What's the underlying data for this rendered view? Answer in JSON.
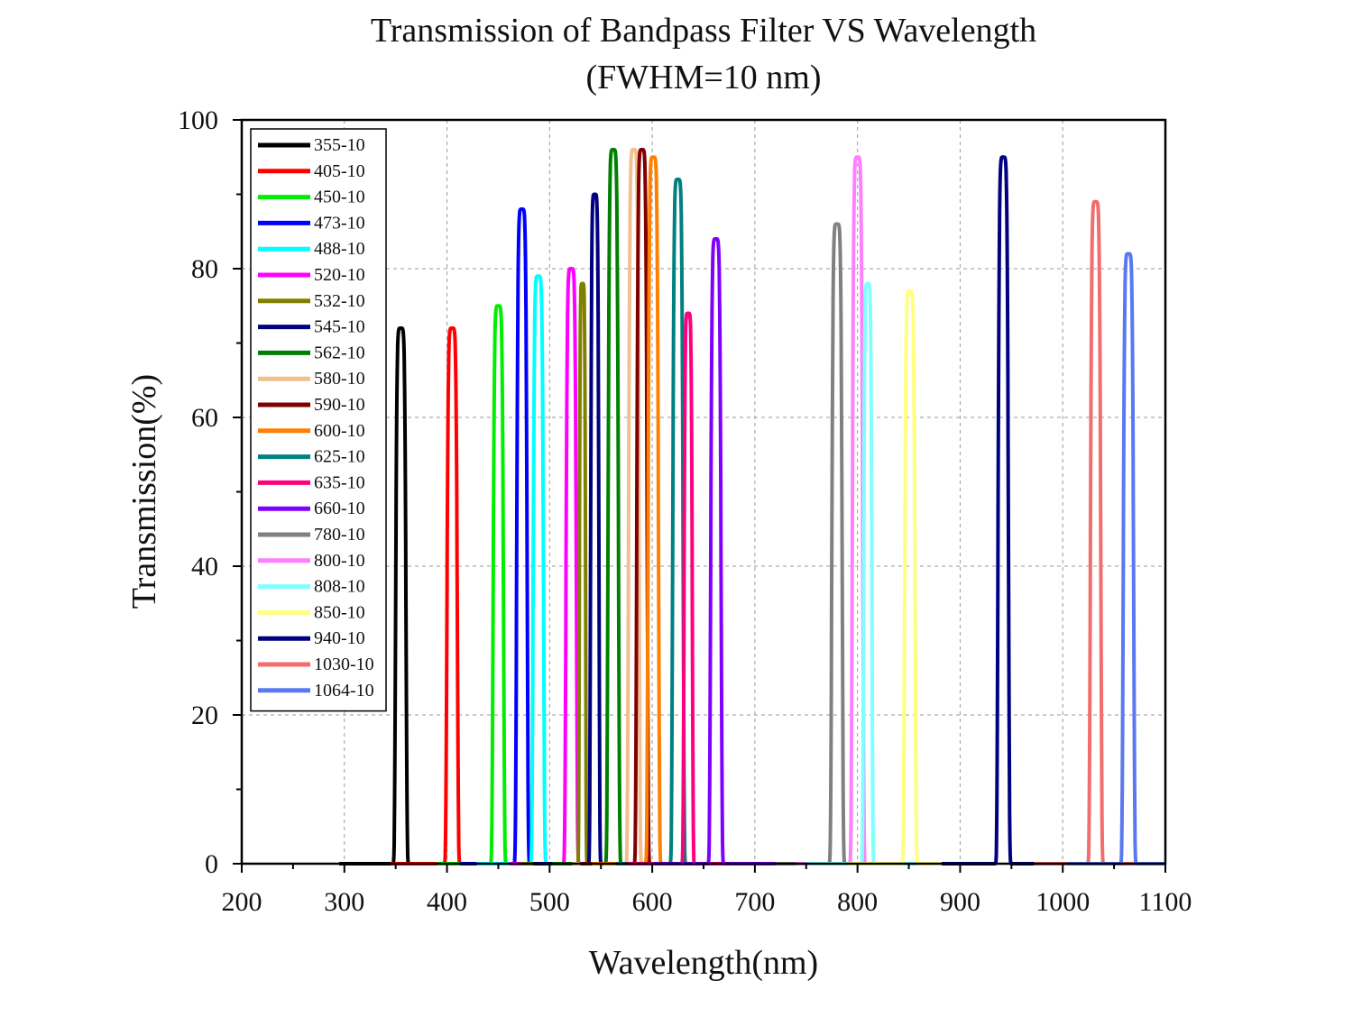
{
  "chart_data": {
    "type": "line",
    "title": "Transmission of Bandpass Filter VS Wavelength",
    "subtitle": "(FWHM=10 nm)",
    "xlabel": "Wavelength(nm)",
    "ylabel": "Transmission(%)",
    "xlim": [
      200,
      1100
    ],
    "ylim": [
      0,
      100
    ],
    "xticks": [
      "200",
      "300",
      "400",
      "500",
      "600",
      "700",
      "800",
      "900",
      "1000",
      "1100"
    ],
    "yticks": [
      "0",
      "20",
      "40",
      "60",
      "80",
      "100"
    ],
    "grid": "dashed",
    "legend_position": "top-left",
    "series": [
      {
        "name": "355-10",
        "color": "#000000",
        "center": 355,
        "width": 10,
        "peak": 72
      },
      {
        "name": "405-10",
        "color": "#ff0000",
        "center": 405,
        "width": 10,
        "peak": 72
      },
      {
        "name": "450-10",
        "color": "#00ee00",
        "center": 450,
        "width": 10,
        "peak": 75
      },
      {
        "name": "473-10",
        "color": "#0000ff",
        "center": 473,
        "width": 10,
        "peak": 88
      },
      {
        "name": "488-10",
        "color": "#00ffff",
        "center": 489,
        "width": 10,
        "peak": 79
      },
      {
        "name": "520-10",
        "color": "#ff00ff",
        "center": 521,
        "width": 10,
        "peak": 80
      },
      {
        "name": "532-10",
        "color": "#808000",
        "center": 532,
        "width": 6,
        "peak": 78
      },
      {
        "name": "545-10",
        "color": "#000080",
        "center": 544,
        "width": 8,
        "peak": 90
      },
      {
        "name": "562-10",
        "color": "#008000",
        "center": 562,
        "width": 10,
        "peak": 96
      },
      {
        "name": "580-10",
        "color": "#f2bf8f",
        "center": 582,
        "width": 10,
        "peak": 96
      },
      {
        "name": "590-10",
        "color": "#800000",
        "center": 590,
        "width": 10,
        "peak": 96
      },
      {
        "name": "600-10",
        "color": "#ff8000",
        "center": 601,
        "width": 10,
        "peak": 95
      },
      {
        "name": "625-10",
        "color": "#008080",
        "center": 625,
        "width": 10,
        "peak": 92
      },
      {
        "name": "635-10",
        "color": "#ff0080",
        "center": 635,
        "width": 8,
        "peak": 74
      },
      {
        "name": "660-10",
        "color": "#8000ff",
        "center": 662,
        "width": 10,
        "peak": 84
      },
      {
        "name": "780-10",
        "color": "#808080",
        "center": 780,
        "width": 10,
        "peak": 86
      },
      {
        "name": "800-10",
        "color": "#ff80ff",
        "center": 800,
        "width": 10,
        "peak": 95
      },
      {
        "name": "808-10",
        "color": "#80ffff",
        "center": 810,
        "width": 8,
        "peak": 78
      },
      {
        "name": "850-10",
        "color": "#ffff80",
        "center": 851,
        "width": 10,
        "peak": 77
      },
      {
        "name": "940-10",
        "color": "#000080",
        "center": 942,
        "width": 10,
        "peak": 95
      },
      {
        "name": "1030-10",
        "color": "#f26d6d",
        "center": 1032,
        "width": 10,
        "peak": 89
      },
      {
        "name": "1064-10",
        "color": "#5a78f0",
        "center": 1064,
        "width": 10,
        "peak": 82
      }
    ]
  }
}
